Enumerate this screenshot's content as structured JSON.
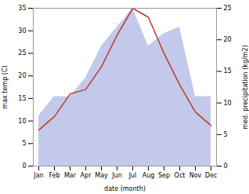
{
  "chart_data": {
    "type": "line",
    "xlabel": "date (month)",
    "ylabel": "max temp (C)",
    "y2label": "med. precipitation (kg/m2)",
    "categories": [
      "Jan",
      "Feb",
      "Mar",
      "Apr",
      "May",
      "Jun",
      "Jul",
      "Aug",
      "Sep",
      "Oct",
      "Nov",
      "Dec"
    ],
    "series": [
      {
        "type": "area",
        "axis": "y2",
        "color": "#b8bfe8",
        "values": [
          8,
          11,
          11,
          14,
          19,
          22,
          25,
          19,
          21,
          22,
          11,
          11
        ]
      },
      {
        "type": "line",
        "color": "#c0392b",
        "values": [
          8,
          11,
          16,
          17,
          22,
          29,
          35,
          33,
          25,
          18,
          12,
          9
        ]
      }
    ],
    "ylim": [
      0,
      35
    ],
    "yticks": [
      0,
      5,
      10,
      15,
      20,
      25,
      30,
      35
    ],
    "y2lim": [
      0,
      25
    ],
    "y2ticks": [
      0,
      5,
      10,
      15,
      20,
      25
    ]
  }
}
